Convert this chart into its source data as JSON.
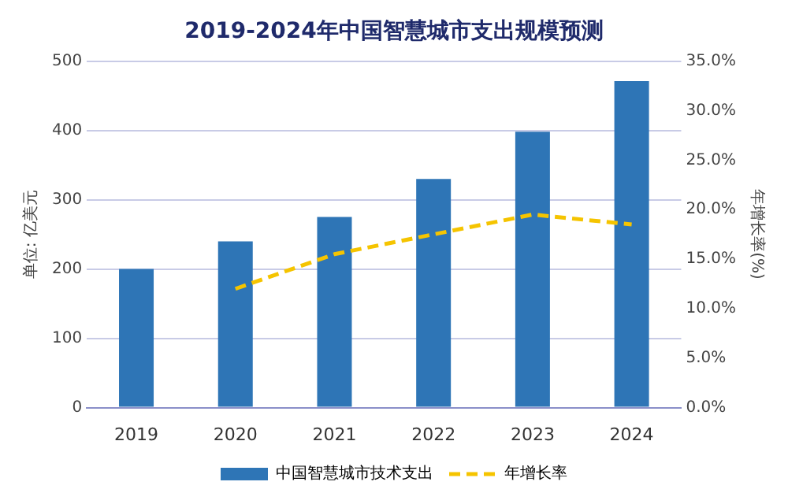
{
  "chart_data": {
    "type": "bar",
    "title": "2019-2024年中国智慧城市支出规模预测",
    "categories": [
      "2019",
      "2020",
      "2021",
      "2022",
      "2023",
      "2024"
    ],
    "series": [
      {
        "name": "中国智慧城市技术支出",
        "color": "#2e75b6",
        "values": [
          200,
          240,
          275,
          330,
          398,
          471
        ]
      },
      {
        "name": "年增长率",
        "type": "line",
        "axis": "y2",
        "color": "#f5c400",
        "line_style": "dashed",
        "marker": "none",
        "values": [
          null,
          12,
          15.5,
          17.5,
          19.5,
          18.5
        ]
      }
    ],
    "ylabel": "单位: 亿美元",
    "y2label": "年增长率(%)",
    "ylim": [
      0,
      500
    ],
    "yticks": [
      0,
      100,
      200,
      300,
      400,
      500
    ],
    "y2lim": [
      0,
      35
    ],
    "y2ticks": [
      {
        "value": 0,
        "label": "0.0%"
      },
      {
        "value": 5,
        "label": "5.0%"
      },
      {
        "value": 10,
        "label": "10.0%"
      },
      {
        "value": 15,
        "label": "15.0%"
      },
      {
        "value": 20,
        "label": "20.0%"
      },
      {
        "value": 25,
        "label": "25.0%"
      },
      {
        "value": 30,
        "label": "30.0%"
      },
      {
        "value": 35,
        "label": "35.0%"
      }
    ],
    "grid": "y",
    "legend": "bottom"
  }
}
